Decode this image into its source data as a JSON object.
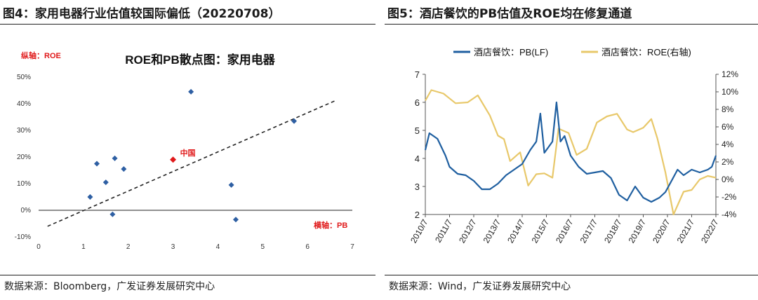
{
  "left_panel": {
    "figure_title": "图4：家用电器行业估值较国际偏低（20220708）",
    "source": "数据来源：Bloomberg，广发证券发展研究中心"
  },
  "right_panel": {
    "figure_title": "图5：酒店餐饮的PB估值及ROE均在修复通道",
    "source": "数据来源：Wind，广发证券发展研究中心"
  },
  "chart_data": [
    {
      "type": "scatter",
      "title": "ROE和PB散点图：家用电器",
      "ylabel": "纵轴：ROE",
      "xlabel": "横轴：PB",
      "xlim": [
        0,
        7
      ],
      "ylim": [
        -10,
        50
      ],
      "x_ticks": [
        "0",
        "1",
        "2",
        "3",
        "4",
        "5",
        "6",
        "7"
      ],
      "y_ticks": [
        "-10%",
        "0%",
        "10%",
        "20%",
        "30%",
        "40%",
        "50%"
      ],
      "points": [
        {
          "x": 1.15,
          "y": 5
        },
        {
          "x": 1.3,
          "y": 17.5
        },
        {
          "x": 1.5,
          "y": 10.5
        },
        {
          "x": 1.65,
          "y": -1.5
        },
        {
          "x": 1.7,
          "y": 19.5
        },
        {
          "x": 1.9,
          "y": 15.5
        },
        {
          "x": 3.4,
          "y": 44.5
        },
        {
          "x": 4.3,
          "y": 9.5
        },
        {
          "x": 4.4,
          "y": -3.5
        },
        {
          "x": 5.7,
          "y": 33.5
        }
      ],
      "highlight": {
        "x": 3.0,
        "y": 19,
        "label": "中国",
        "color": "#e0191a"
      },
      "trendline": {
        "x": [
          0.2,
          6.6
        ],
        "y": [
          -6,
          41
        ]
      },
      "point_color": "#2e5fa3",
      "trendline_style": "dashed",
      "grid": false
    },
    {
      "type": "line",
      "series": [
        {
          "name": "酒店餐饮：PB(LF)",
          "axis": "left",
          "color": "#1f5fa0",
          "x": [
            "2010/07",
            "2010/09",
            "2011/01",
            "2011/05",
            "2011/07",
            "2011/11",
            "2012/03",
            "2012/07",
            "2012/11",
            "2013/03",
            "2013/07",
            "2013/11",
            "2014/03",
            "2014/07",
            "2014/11",
            "2015/02",
            "2015/04",
            "2015/06",
            "2015/08",
            "2015/10",
            "2015/12",
            "2016/02",
            "2016/04",
            "2016/07",
            "2016/11",
            "2017/03",
            "2017/07",
            "2017/11",
            "2018/03",
            "2018/07",
            "2018/11",
            "2019/03",
            "2019/07",
            "2019/11",
            "2020/03",
            "2020/06",
            "2020/09",
            "2020/12",
            "2021/03",
            "2021/07",
            "2021/11",
            "2022/03",
            "2022/05",
            "2022/07"
          ],
          "y": [
            4.3,
            4.9,
            4.7,
            4.1,
            3.7,
            3.45,
            3.4,
            3.2,
            2.9,
            2.9,
            3.1,
            3.4,
            3.6,
            3.8,
            4.3,
            4.6,
            5.6,
            4.2,
            4.4,
            4.6,
            6.0,
            4.6,
            4.8,
            4.1,
            3.7,
            3.45,
            3.5,
            3.55,
            3.3,
            2.7,
            2.5,
            3.0,
            2.6,
            2.45,
            2.6,
            2.8,
            3.2,
            3.6,
            3.4,
            3.6,
            3.5,
            3.6,
            3.7,
            4.1
          ]
        },
        {
          "name": "酒店餐饮：ROE(右轴)",
          "axis": "right",
          "color": "#e8c86a",
          "x": [
            "2010/07",
            "2010/10",
            "2011/04",
            "2011/10",
            "2012/04",
            "2012/09",
            "2013/03",
            "2013/07",
            "2013/10",
            "2014/01",
            "2014/06",
            "2014/10",
            "2015/02",
            "2015/06",
            "2015/10",
            "2016/01",
            "2016/06",
            "2016/10",
            "2017/03",
            "2017/08",
            "2018/01",
            "2018/06",
            "2018/11",
            "2019/02",
            "2019/07",
            "2019/11",
            "2020/02",
            "2020/06",
            "2020/10",
            "2021/03",
            "2021/07",
            "2021/11",
            "2022/03",
            "2022/07"
          ],
          "y": [
            9.0,
            10.2,
            9.8,
            8.7,
            8.8,
            9.6,
            7.3,
            5.0,
            4.6,
            2.1,
            3.1,
            -0.7,
            0.6,
            0.7,
            0.2,
            5.8,
            5.3,
            2.8,
            3.5,
            6.5,
            7.2,
            7.5,
            5.7,
            5.4,
            5.9,
            6.9,
            4.7,
            0.8,
            -4.0,
            -1.4,
            -1.2,
            0.0,
            0.4,
            0.2
          ]
        }
      ],
      "x_ticks": [
        "2010/7",
        "2011/7",
        "2012/7",
        "2013/7",
        "2014/7",
        "2015/7",
        "2016/7",
        "2017/7",
        "2018/7",
        "2019/7",
        "2020/7",
        "2021/7",
        "2022/7"
      ],
      "y_left_ticks": [
        "2",
        "3",
        "4",
        "5",
        "6",
        "7"
      ],
      "y_right_ticks": [
        "-4%",
        "-2%",
        "0%",
        "2%",
        "4%",
        "6%",
        "8%",
        "10%",
        "12%"
      ],
      "ylim_left": [
        2,
        7
      ],
      "ylim_right": [
        -4,
        12
      ],
      "legend_placement": "top",
      "grid": false
    }
  ]
}
